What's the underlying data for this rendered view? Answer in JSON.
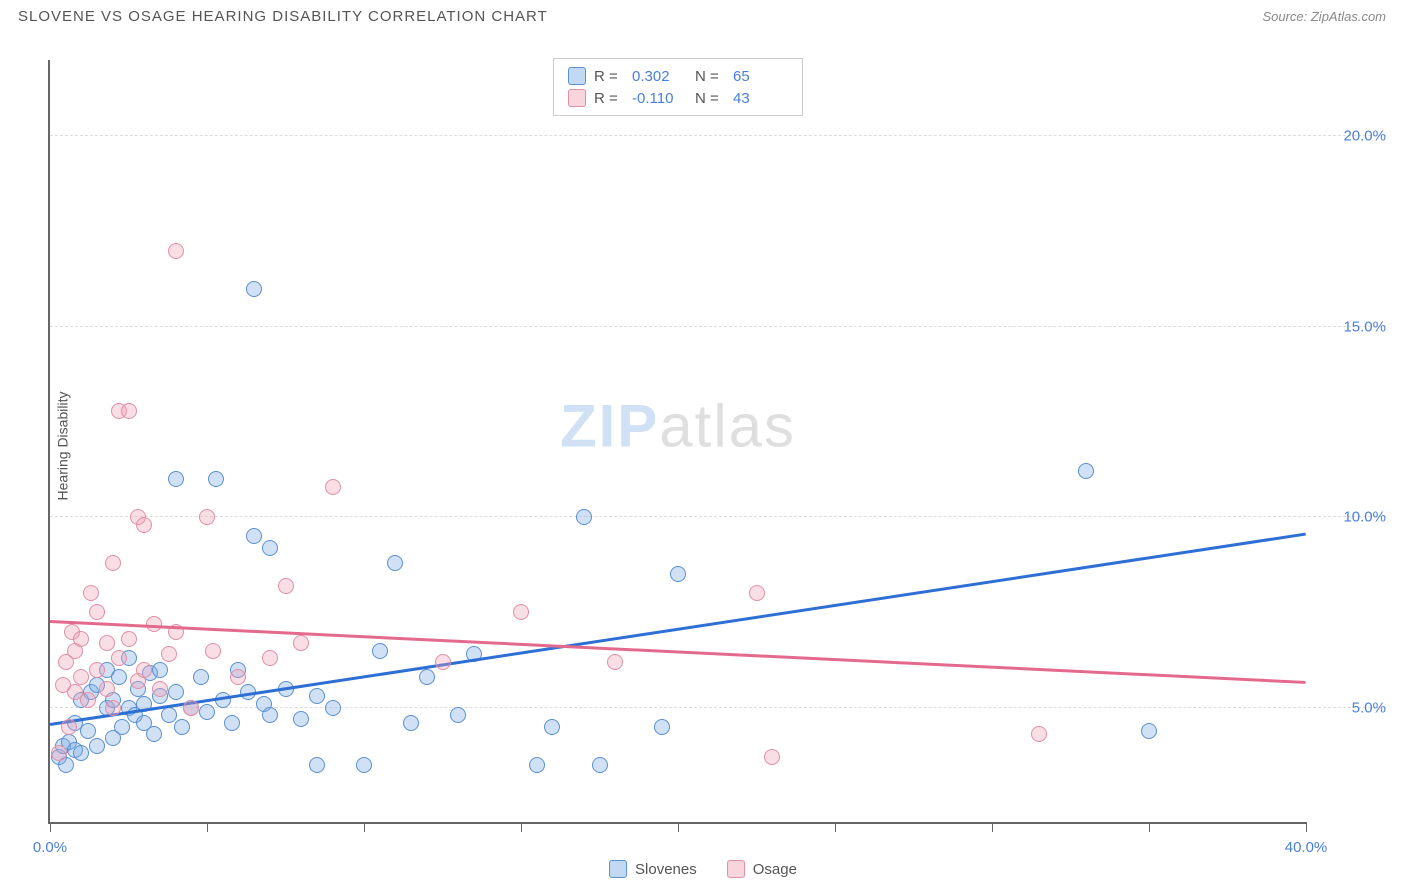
{
  "header": {
    "title": "SLOVENE VS OSAGE HEARING DISABILITY CORRELATION CHART",
    "source": "Source: ZipAtlas.com"
  },
  "chart": {
    "type": "scatter",
    "ylabel": "Hearing Disability",
    "xlim": [
      0,
      40
    ],
    "ylim": [
      2,
      22
    ],
    "x_ticks": [
      0,
      5,
      10,
      15,
      20,
      25,
      30,
      35,
      40
    ],
    "x_tick_labels": {
      "0": "0.0%",
      "40": "40.0%"
    },
    "y_gridlines": [
      5,
      10,
      15,
      20
    ],
    "y_tick_labels": {
      "5": "5.0%",
      "10": "10.0%",
      "15": "15.0%",
      "20": "20.0%"
    },
    "grid_color": "#dddddd",
    "axis_color": "#666666",
    "tick_label_color": "#4a7fd8",
    "label_color": "#555555",
    "label_fontsize": 14,
    "tick_fontsize": 15,
    "point_radius": 8,
    "background_color": "#ffffff",
    "watermark": {
      "part1": "ZIP",
      "part2": "atlas",
      "color1": "rgba(120,170,230,0.35)",
      "color2": "rgba(150,150,150,0.30)",
      "fontsize": 60
    },
    "series": [
      {
        "key": "slovenes",
        "label": "Slovenes",
        "fill": "rgba(120,170,230,0.35)",
        "stroke": "#5a8fd0",
        "trend_color": "#2e6fd6",
        "correlation": {
          "R": "0.302",
          "N": "65"
        },
        "trend": {
          "x1": 0,
          "y1": 4.6,
          "x2": 40,
          "y2": 9.6
        },
        "points": [
          [
            0.3,
            3.7
          ],
          [
            0.4,
            4.0
          ],
          [
            0.5,
            3.5
          ],
          [
            0.6,
            4.1
          ],
          [
            0.8,
            3.9
          ],
          [
            0.8,
            4.6
          ],
          [
            1.0,
            5.2
          ],
          [
            1.0,
            3.8
          ],
          [
            1.2,
            4.4
          ],
          [
            1.3,
            5.4
          ],
          [
            1.5,
            4.0
          ],
          [
            1.5,
            5.6
          ],
          [
            1.8,
            5.0
          ],
          [
            1.8,
            6.0
          ],
          [
            2.0,
            4.2
          ],
          [
            2.0,
            5.2
          ],
          [
            2.2,
            5.8
          ],
          [
            2.3,
            4.5
          ],
          [
            2.5,
            5.0
          ],
          [
            2.5,
            6.3
          ],
          [
            2.7,
            4.8
          ],
          [
            2.8,
            5.5
          ],
          [
            3.0,
            4.6
          ],
          [
            3.0,
            5.1
          ],
          [
            3.2,
            5.9
          ],
          [
            3.3,
            4.3
          ],
          [
            3.5,
            5.3
          ],
          [
            3.5,
            6.0
          ],
          [
            3.8,
            4.8
          ],
          [
            4.0,
            11.0
          ],
          [
            4.0,
            5.4
          ],
          [
            4.2,
            4.5
          ],
          [
            4.5,
            5.0
          ],
          [
            4.8,
            5.8
          ],
          [
            5.0,
            4.9
          ],
          [
            5.3,
            11.0
          ],
          [
            5.5,
            5.2
          ],
          [
            5.8,
            4.6
          ],
          [
            6.0,
            6.0
          ],
          [
            6.3,
            5.4
          ],
          [
            6.5,
            9.5
          ],
          [
            6.5,
            16.0
          ],
          [
            6.8,
            5.1
          ],
          [
            7.0,
            4.8
          ],
          [
            7.0,
            9.2
          ],
          [
            7.5,
            5.5
          ],
          [
            8.0,
            4.7
          ],
          [
            8.5,
            5.3
          ],
          [
            8.5,
            3.5
          ],
          [
            9.0,
            5.0
          ],
          [
            10.0,
            3.5
          ],
          [
            10.5,
            6.5
          ],
          [
            11.0,
            8.8
          ],
          [
            11.5,
            4.6
          ],
          [
            12.0,
            5.8
          ],
          [
            13.0,
            4.8
          ],
          [
            13.5,
            6.4
          ],
          [
            15.5,
            3.5
          ],
          [
            16.0,
            4.5
          ],
          [
            17.0,
            10.0
          ],
          [
            17.5,
            3.5
          ],
          [
            19.5,
            4.5
          ],
          [
            20.0,
            8.5
          ],
          [
            33.0,
            11.2
          ],
          [
            35.0,
            4.4
          ]
        ]
      },
      {
        "key": "osage",
        "label": "Osage",
        "fill": "rgba(240,160,180,0.35)",
        "stroke": "#e08fa5",
        "trend_color": "#e46a8d",
        "correlation": {
          "R": "-0.110",
          "N": "43"
        },
        "trend": {
          "x1": 0,
          "y1": 7.3,
          "x2": 40,
          "y2": 5.7
        },
        "points": [
          [
            0.3,
            3.8
          ],
          [
            0.4,
            5.6
          ],
          [
            0.5,
            6.2
          ],
          [
            0.6,
            4.5
          ],
          [
            0.7,
            7.0
          ],
          [
            0.8,
            5.4
          ],
          [
            0.8,
            6.5
          ],
          [
            1.0,
            5.8
          ],
          [
            1.0,
            6.8
          ],
          [
            1.2,
            5.2
          ],
          [
            1.3,
            8.0
          ],
          [
            1.5,
            6.0
          ],
          [
            1.5,
            7.5
          ],
          [
            1.8,
            5.5
          ],
          [
            1.8,
            6.7
          ],
          [
            2.0,
            8.8
          ],
          [
            2.0,
            5.0
          ],
          [
            2.2,
            6.3
          ],
          [
            2.2,
            12.8
          ],
          [
            2.5,
            12.8
          ],
          [
            2.5,
            6.8
          ],
          [
            2.8,
            5.7
          ],
          [
            2.8,
            10.0
          ],
          [
            3.0,
            6.0
          ],
          [
            3.0,
            9.8
          ],
          [
            3.3,
            7.2
          ],
          [
            3.5,
            5.5
          ],
          [
            3.8,
            6.4
          ],
          [
            4.0,
            7.0
          ],
          [
            4.0,
            17.0
          ],
          [
            4.5,
            5.0
          ],
          [
            5.0,
            10.0
          ],
          [
            5.2,
            6.5
          ],
          [
            6.0,
            5.8
          ],
          [
            7.0,
            6.3
          ],
          [
            7.5,
            8.2
          ],
          [
            8.0,
            6.7
          ],
          [
            9.0,
            10.8
          ],
          [
            12.5,
            6.2
          ],
          [
            15.0,
            7.5
          ],
          [
            18.0,
            6.2
          ],
          [
            22.5,
            8.0
          ],
          [
            23.0,
            3.7
          ],
          [
            31.5,
            4.3
          ]
        ]
      }
    ]
  },
  "legend_top": {
    "r_label": "R =",
    "n_label": "N ="
  }
}
